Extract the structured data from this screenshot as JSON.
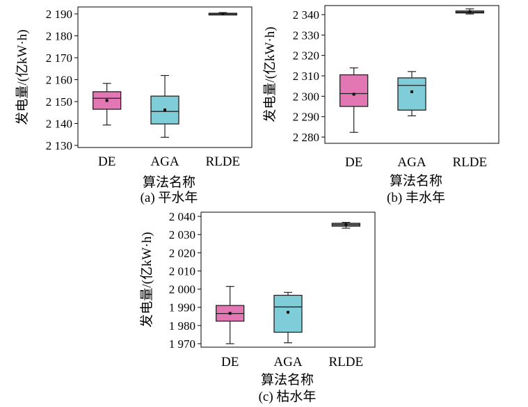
{
  "figure": {
    "ylabel": "发电量/(亿kW·h)",
    "xlabel": "算法名称"
  },
  "colors": {
    "DE": "#e377b4",
    "AGA": "#7fcdd9",
    "RLDE": "#8f8f8f",
    "stroke": "#222222"
  },
  "chart_data": [
    {
      "type": "box",
      "caption": "(a) 平水年",
      "xlabel": "算法名称",
      "ylabel": "发电量/(亿kW·h)",
      "categories": [
        "DE",
        "AGA",
        "RLDE"
      ],
      "ylim": [
        2128,
        2194
      ],
      "yticks": [
        2130,
        2140,
        2150,
        2160,
        2170,
        2180,
        2190
      ],
      "ytick_labels": [
        "2 130",
        "2 140",
        "2 150",
        "2 160",
        "2 170",
        "2 180",
        "2 190"
      ],
      "boxes": [
        {
          "name": "DE",
          "whisker_low": 2139.3,
          "q1": 2146.5,
          "median": 2151.5,
          "q3": 2154.5,
          "whisker_high": 2158.3,
          "mean": 2150.5
        },
        {
          "name": "AGA",
          "whisker_low": 2133.7,
          "q1": 2139.8,
          "median": 2145.5,
          "q3": 2152.5,
          "whisker_high": 2161.9,
          "mean": 2146.2
        },
        {
          "name": "RLDE",
          "whisker_low": 2189.6,
          "q1": 2189.8,
          "median": 2190.0,
          "q3": 2190.3,
          "whisker_high": 2190.6,
          "mean": 2190.1
        }
      ]
    },
    {
      "type": "box",
      "caption": "(b) 丰水年",
      "xlabel": "算法名称",
      "ylabel": "发电量/(亿kW·h)",
      "categories": [
        "DE",
        "AGA",
        "RLDE"
      ],
      "ylim": [
        2277,
        2344
      ],
      "yticks": [
        2280,
        2290,
        2300,
        2310,
        2320,
        2330,
        2340
      ],
      "ytick_labels": [
        "2 280",
        "2 290",
        "2 300",
        "2 310",
        "2 320",
        "2 330",
        "2 340"
      ],
      "boxes": [
        {
          "name": "DE",
          "whisker_low": 2282.3,
          "q1": 2295.0,
          "median": 2301.3,
          "q3": 2310.5,
          "whisker_high": 2313.9,
          "mean": 2301.0
        },
        {
          "name": "AGA",
          "whisker_low": 2290.4,
          "q1": 2293.2,
          "median": 2305.3,
          "q3": 2309.0,
          "whisker_high": 2312.1,
          "mean": 2302.2
        },
        {
          "name": "RLDE",
          "whisker_low": 2340.3,
          "q1": 2340.8,
          "median": 2341.2,
          "q3": 2341.8,
          "whisker_high": 2342.8,
          "mean": 2341.4
        }
      ]
    },
    {
      "type": "box",
      "caption": "(c) 枯水年",
      "xlabel": "算法名称",
      "ylabel": "发电量/(亿kW·h)",
      "categories": [
        "DE",
        "AGA",
        "RLDE"
      ],
      "ylim": [
        1968,
        2042
      ],
      "yticks": [
        1970,
        1980,
        1990,
        2000,
        2010,
        2020,
        2030,
        2040
      ],
      "ytick_labels": [
        "1 970",
        "1 980",
        "1 990",
        "2 000",
        "2 010",
        "2 020",
        "2 030",
        "2 040"
      ],
      "boxes": [
        {
          "name": "DE",
          "whisker_low": 1970.0,
          "q1": 1982.4,
          "median": 1986.6,
          "q3": 1991.0,
          "whisker_high": 2001.5,
          "mean": 1986.7
        },
        {
          "name": "AGA",
          "whisker_low": 1970.5,
          "q1": 1976.3,
          "median": 1990.2,
          "q3": 1996.6,
          "whisker_high": 1998.2,
          "mean": 1987.3
        },
        {
          "name": "RLDE",
          "whisker_low": 2033.5,
          "q1": 2034.6,
          "median": 2035.4,
          "q3": 2036.2,
          "whisker_high": 2036.7,
          "mean": 2035.6
        }
      ]
    }
  ]
}
